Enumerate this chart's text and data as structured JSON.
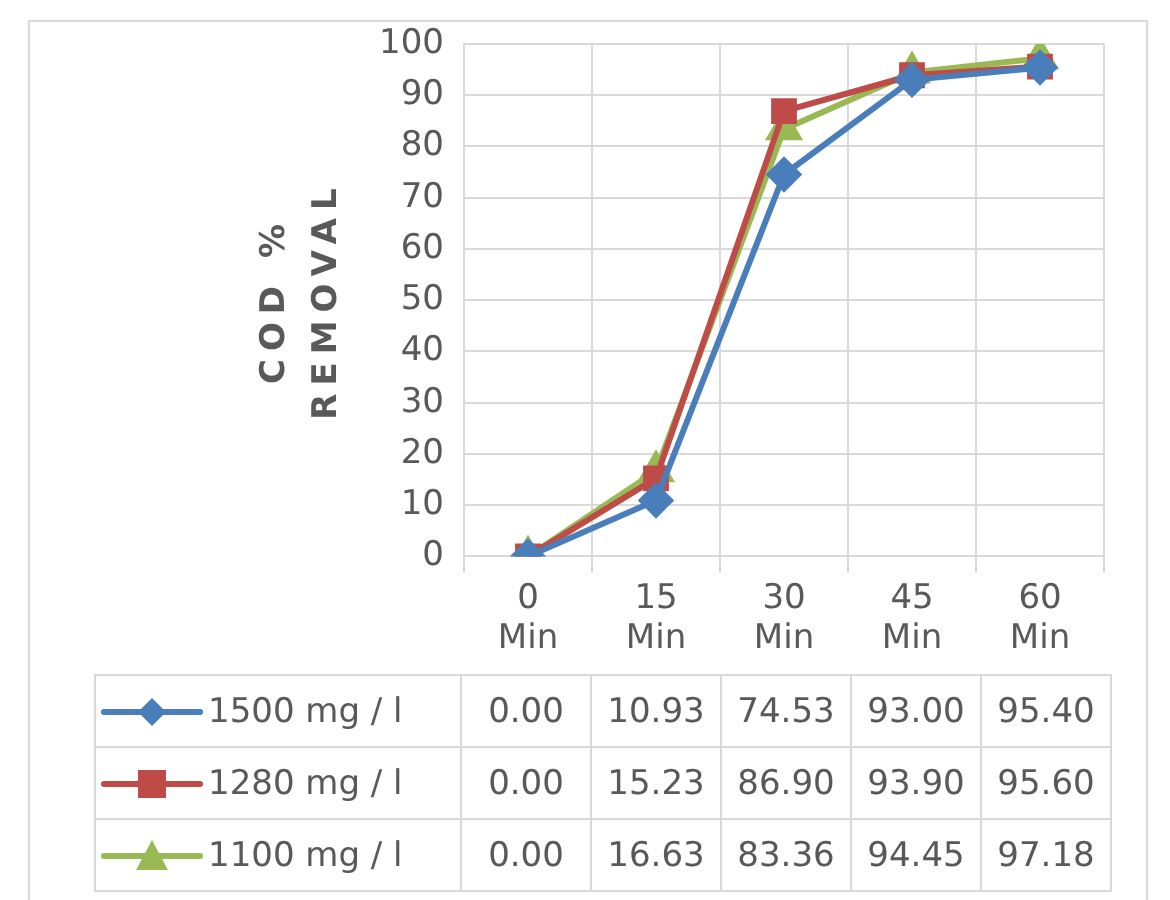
{
  "chart_data": {
    "type": "line",
    "ylabel": "COD % REMOVAL",
    "categories": [
      "0 Min",
      "15 Min",
      "30 Min",
      "45 Min",
      "60 Min"
    ],
    "series": [
      {
        "name": "1500 mg / l",
        "color": "#4a7ebb",
        "marker": "diamond",
        "values": [
          0,
          10.93,
          74.53,
          93.0,
          95.4
        ],
        "value_labels": [
          "0.00",
          "10.93",
          "74.53",
          "93.00",
          "95.40"
        ]
      },
      {
        "name": "1280 mg / l",
        "color": "#be4b48",
        "marker": "square",
        "values": [
          0,
          15.23,
          86.9,
          93.9,
          95.6
        ],
        "value_labels": [
          "0.00",
          "15.23",
          "86.90",
          "93.90",
          "95.60"
        ]
      },
      {
        "name": "1100 mg / l",
        "color": "#98b954",
        "marker": "triangle",
        "values": [
          0,
          16.63,
          83.36,
          94.45,
          97.18
        ],
        "value_labels": [
          "0.00",
          "16.63",
          "83.36",
          "94.45",
          "97.18"
        ]
      }
    ],
    "ylim": [
      0,
      100
    ],
    "yticks": [
      0,
      10,
      20,
      30,
      40,
      50,
      60,
      70,
      80,
      90,
      100
    ],
    "grid": true,
    "legend": "bottom"
  }
}
